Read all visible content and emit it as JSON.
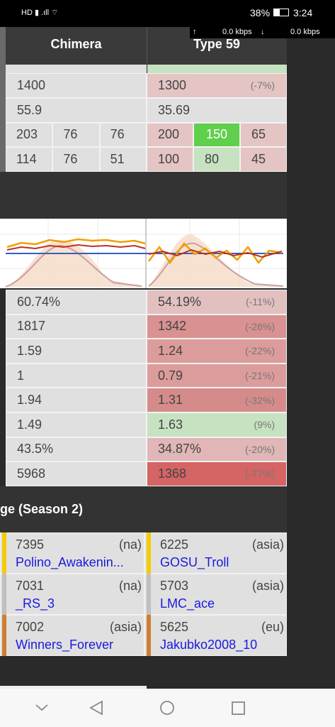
{
  "status": {
    "battery": "38%",
    "time": "3:24",
    "up_arrow": "↑",
    "up": "0.0 kbps",
    "down_arrow": "↓",
    "down": "0.0 kbps"
  },
  "header": {
    "left": "Chimera",
    "right": "Type 59"
  },
  "rows_top": [
    {
      "left": [
        "1400"
      ],
      "right": [
        "1300"
      ],
      "diff": "(-7%)",
      "colors": [
        "#e5c4c4"
      ]
    },
    {
      "left": [
        "55.9"
      ],
      "right": [
        "35.69"
      ],
      "colors": [
        "#e0e0e0"
      ]
    },
    {
      "left": [
        "203",
        "76",
        "76"
      ],
      "right": [
        "200",
        "150",
        "65"
      ],
      "colors": [
        "#e5c4c4",
        "#5fcf4c",
        "#e5c4c4"
      ]
    },
    {
      "left": [
        "114",
        "76",
        "51"
      ],
      "right": [
        "100",
        "80",
        "45"
      ],
      "colors": [
        "#e5c4c4",
        "#c6e2c0",
        "#e5c4c4"
      ]
    }
  ],
  "rows_bottom": [
    {
      "left": [
        "60.74%"
      ],
      "right": [
        "54.19%"
      ],
      "diff": "(-11%)",
      "colors": [
        "#e3c0c0"
      ]
    },
    {
      "left": [
        "1817"
      ],
      "right": [
        "1342"
      ],
      "diff": "(-26%)",
      "colors": [
        "#d99191"
      ]
    },
    {
      "left": [
        "1.59"
      ],
      "right": [
        "1.24"
      ],
      "diff": "(-22%)",
      "colors": [
        "#dc9c9c"
      ]
    },
    {
      "left": [
        "1"
      ],
      "right": [
        "0.79"
      ],
      "diff": "(-21%)",
      "colors": [
        "#dc9c9c"
      ]
    },
    {
      "left": [
        "1.94"
      ],
      "right": [
        "1.31"
      ],
      "diff": "(-32%)",
      "colors": [
        "#d68b8b"
      ]
    },
    {
      "left": [
        "1.49"
      ],
      "right": [
        "1.63"
      ],
      "diff": "(9%)",
      "colors": [
        "#c6e2c0"
      ]
    },
    {
      "left": [
        "43.5%"
      ],
      "right": [
        "34.87%"
      ],
      "diff": "(-20%)",
      "colors": [
        "#e0b6b6"
      ]
    },
    {
      "left": [
        "5968"
      ],
      "right": [
        "1368"
      ],
      "diff": "(-77%)",
      "colors": [
        "#d56464"
      ]
    }
  ],
  "section_title": "ge (Season 2)",
  "leaderboard": [
    [
      {
        "score": "7395",
        "region": "(na)",
        "name": "Polino_Awakenin...",
        "color": "#f2cc00"
      },
      {
        "score": "6225",
        "region": "(asia)",
        "name": "GOSU_Troll",
        "color": "#f2cc00"
      }
    ],
    [
      {
        "score": "7031",
        "region": "(na)",
        "name": "_RS_3",
        "color": "#c0c0c0"
      },
      {
        "score": "5703",
        "region": "(asia)",
        "name": "LMC_ace",
        "color": "#c0c0c0"
      }
    ],
    [
      {
        "score": "7002",
        "region": "(asia)",
        "name": "Winners_Forever",
        "color": "#cd7f32"
      },
      {
        "score": "5625",
        "region": "(eu)",
        "name": "Jakubko2008_10",
        "color": "#cd7f32"
      }
    ]
  ]
}
